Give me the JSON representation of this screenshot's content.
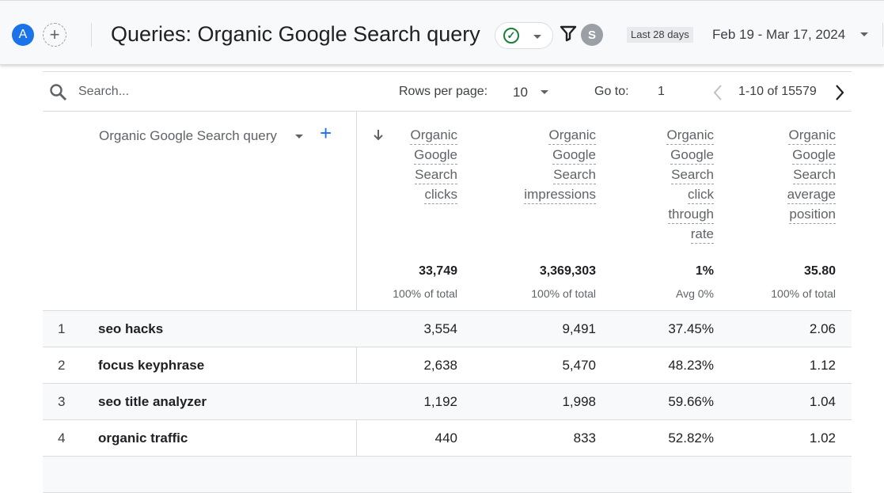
{
  "header": {
    "avatar": "A",
    "add": "+",
    "title": "Queries: Organic Google Search query",
    "status_icon": "check-circle-icon",
    "filter_icon": "filter-icon",
    "user_avatar": "S",
    "date_preset": "Last 28 days",
    "date_range": "Feb 19 - Mar 17, 2024"
  },
  "toolbar": {
    "search_placeholder": "Search...",
    "rows_per_page_label": "Rows per page:",
    "rows_per_page": "10",
    "goto_label": "Go to:",
    "goto_value": "1",
    "pagination": "1-10 of 15579"
  },
  "table": {
    "dimension_header": "Organic Google Search query",
    "sort": "descending",
    "columns": [
      {
        "label": "Organic Google Search clicks",
        "total": "33,749",
        "sub": "100% of total"
      },
      {
        "label": "Organic Google Search impressions",
        "total": "3,369,303",
        "sub": "100% of total"
      },
      {
        "label": "Organic Google Search click through rate",
        "total": "1%",
        "sub": "Avg 0%"
      },
      {
        "label": "Organic Google Search average position",
        "total": "35.80",
        "sub": "100% of total"
      }
    ],
    "rows": [
      {
        "idx": "1",
        "query": "seo hacks",
        "values": [
          "3,554",
          "9,491",
          "37.45%",
          "2.06"
        ]
      },
      {
        "idx": "2",
        "query": "focus keyphrase",
        "values": [
          "2,638",
          "5,470",
          "48.23%",
          "1.12"
        ]
      },
      {
        "idx": "3",
        "query": "seo title analyzer",
        "values": [
          "1,192",
          "1,998",
          "59.66%",
          "1.04"
        ]
      },
      {
        "idx": "4",
        "query": "organic traffic",
        "values": [
          "440",
          "833",
          "52.82%",
          "1.02"
        ]
      }
    ]
  }
}
